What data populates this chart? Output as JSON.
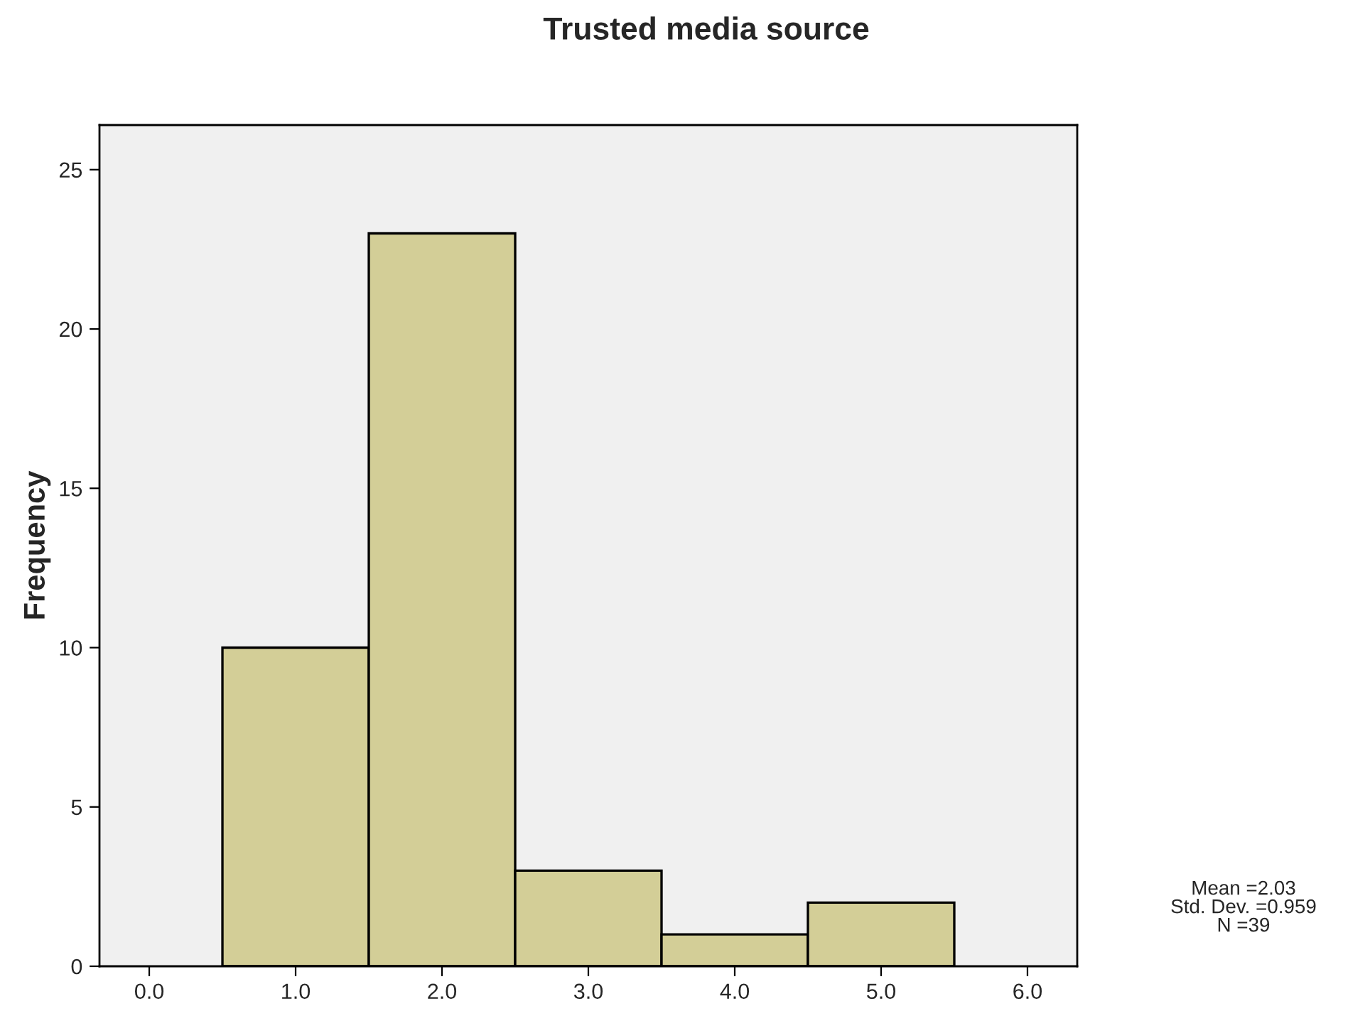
{
  "chart_data": {
    "type": "histogram",
    "title": "Trusted media source",
    "ylabel": "Frequency",
    "bins": [
      0.5,
      1.5,
      2.5,
      3.5,
      4.5,
      5.5
    ],
    "values": [
      10,
      23,
      3,
      1,
      2
    ],
    "color": "#d3ce97",
    "xlim": [
      -0.34,
      6.34
    ],
    "xticks": [
      {
        "value": 0,
        "label": "0.0"
      },
      {
        "value": 1,
        "label": "1.0"
      },
      {
        "value": 2,
        "label": "2.0"
      },
      {
        "value": 3,
        "label": "3.0"
      },
      {
        "value": 4,
        "label": "4.0"
      },
      {
        "value": 5,
        "label": "5.0"
      },
      {
        "value": 6,
        "label": "6.0"
      }
    ],
    "ylim": [
      0,
      26.4
    ],
    "yticks": [
      0,
      5,
      10,
      15,
      20,
      25
    ],
    "grid": false,
    "legend": false,
    "annotations": [
      "Mean =2.03",
      "Std. Dev. =0.959",
      "N =39"
    ]
  }
}
